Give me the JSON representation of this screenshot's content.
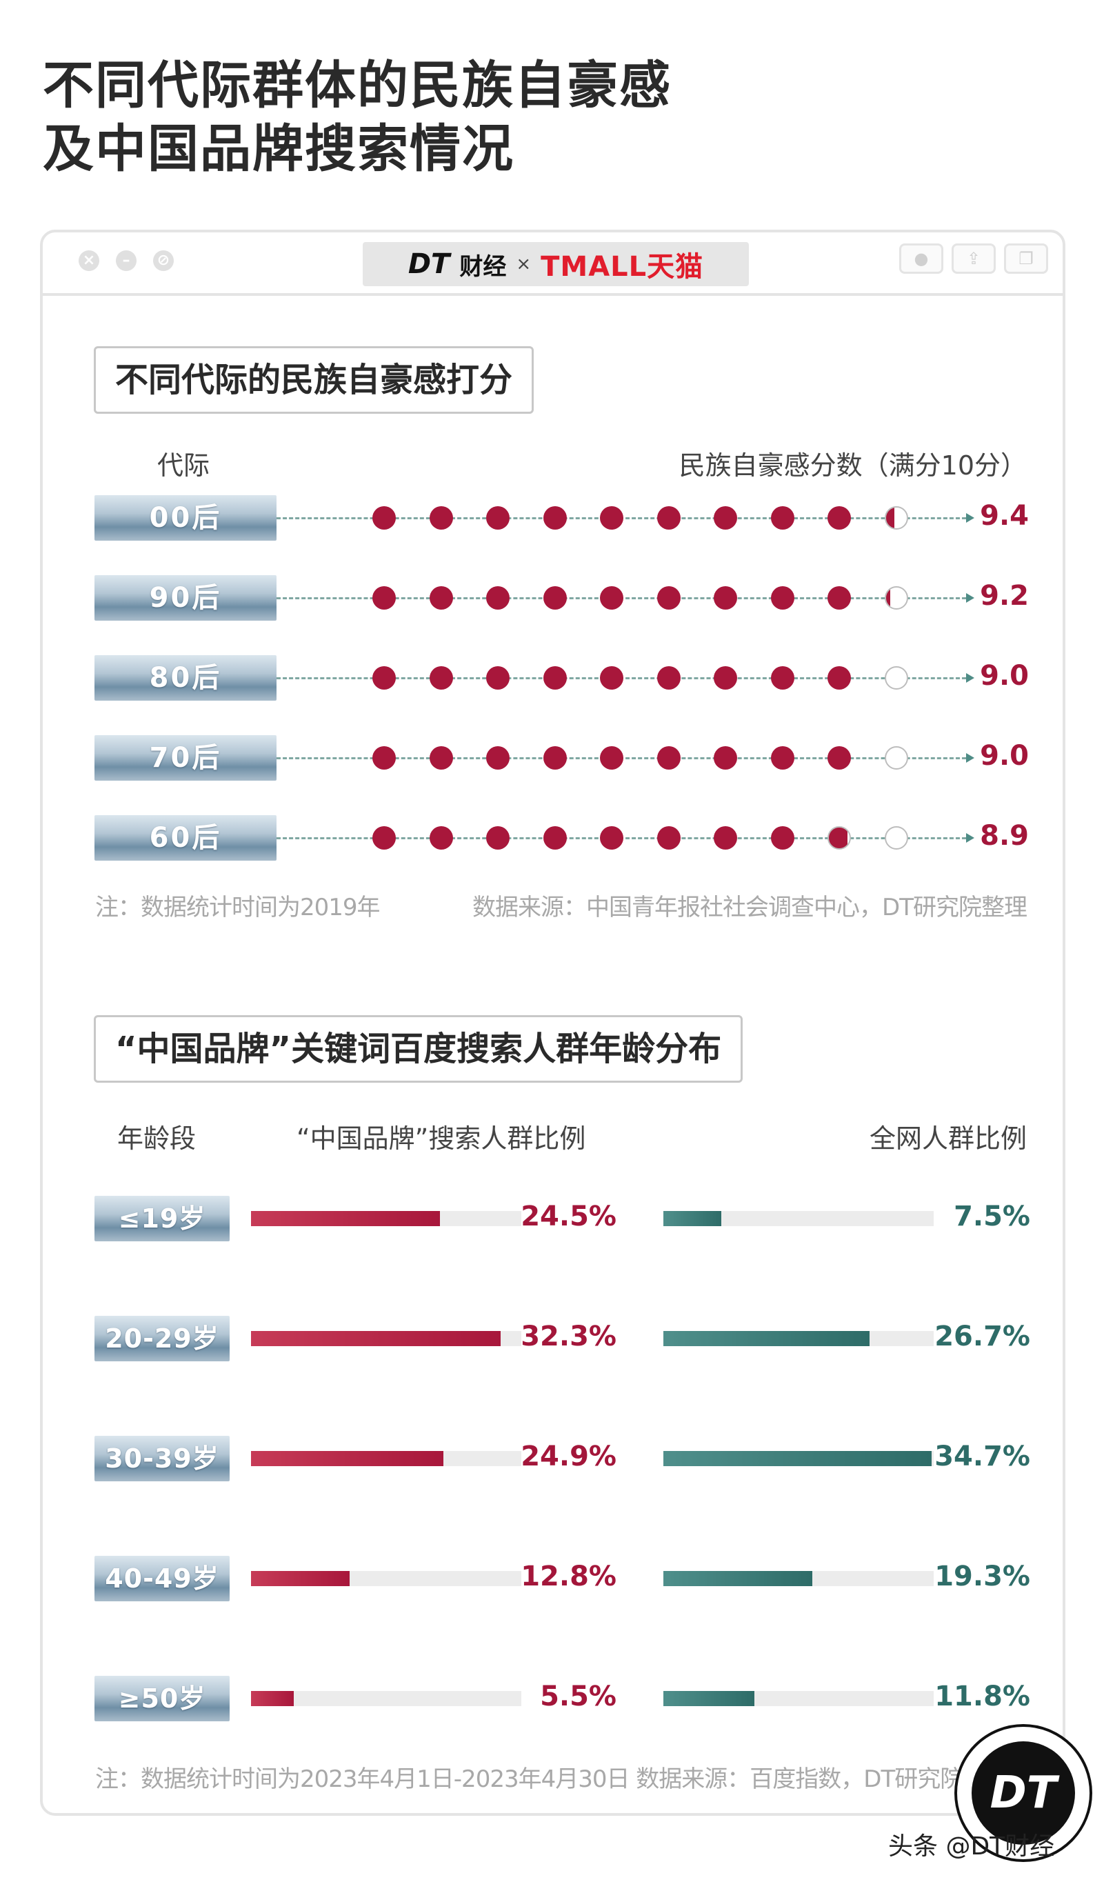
{
  "title_line1": "不同代际群体的民族自豪感",
  "title_line2": "及中国品牌搜索情况",
  "window": {
    "brand_dt": "DT",
    "brand_cj": "财经",
    "brand_x": "×",
    "brand_tmall": "TMALL天猫",
    "controls": [
      "close-icon",
      "minimize-icon",
      "fullscreen-icon"
    ],
    "right_buttons": [
      "record-icon",
      "share-icon",
      "copy-icon"
    ]
  },
  "section1": {
    "title": "不同代际的民族自豪感打分",
    "col_left": "代际",
    "col_right": "民族自豪感分数（满分10分）",
    "note_left": "注：数据统计时间为2019年",
    "note_right": "数据来源：中国青年报社社会调查中心，DT研究院整理"
  },
  "section2": {
    "title": "“中国品牌”关键词百度搜索人群年龄分布",
    "col_age": "年龄段",
    "col_search": "“中国品牌”搜索人群比例",
    "col_all": "全网人群比例",
    "note": "注：数据统计时间为2023年4月1日-2023年4月30日   数据来源：百度指数，DT研究院整理"
  },
  "colors": {
    "red": "#a8173b",
    "teal": "#2e6c68",
    "empty_dot_border": "#bdbdbd"
  },
  "chart_data": [
    {
      "type": "dot-plot",
      "categories": [
        "00后",
        "90后",
        "80后",
        "70后",
        "60后"
      ],
      "values": [
        9.4,
        9.2,
        9.0,
        9.0,
        8.9
      ],
      "labels": [
        "9.4",
        "9.2",
        "9.0",
        "9.0",
        "8.9"
      ],
      "xlim": [
        0,
        10
      ],
      "xlabel": "代际",
      "ylabel": "民族自豪感分数（满分10分）",
      "title": "不同代际的民族自豪感打分"
    },
    {
      "type": "bar",
      "categories": [
        "≤19岁",
        "20-29岁",
        "30-39岁",
        "40-49岁",
        "≥50岁"
      ],
      "series": [
        {
          "name": "“中国品牌”搜索人群比例",
          "values": [
            24.5,
            32.3,
            24.9,
            12.8,
            5.5
          ],
          "labels": [
            "24.5%",
            "32.3%",
            "24.9%",
            "12.8%",
            "5.5%"
          ]
        },
        {
          "name": "全网人群比例",
          "values": [
            7.5,
            26.7,
            34.7,
            19.3,
            11.8
          ],
          "labels": [
            "7.5%",
            "26.7%",
            "34.7%",
            "19.3%",
            "11.8%"
          ]
        }
      ],
      "xlim": [
        0,
        35
      ],
      "title": "“中国品牌”关键词百度搜索人群年龄分布"
    }
  ],
  "logo_text": "DT",
  "watermark": "头条 @DT财经"
}
